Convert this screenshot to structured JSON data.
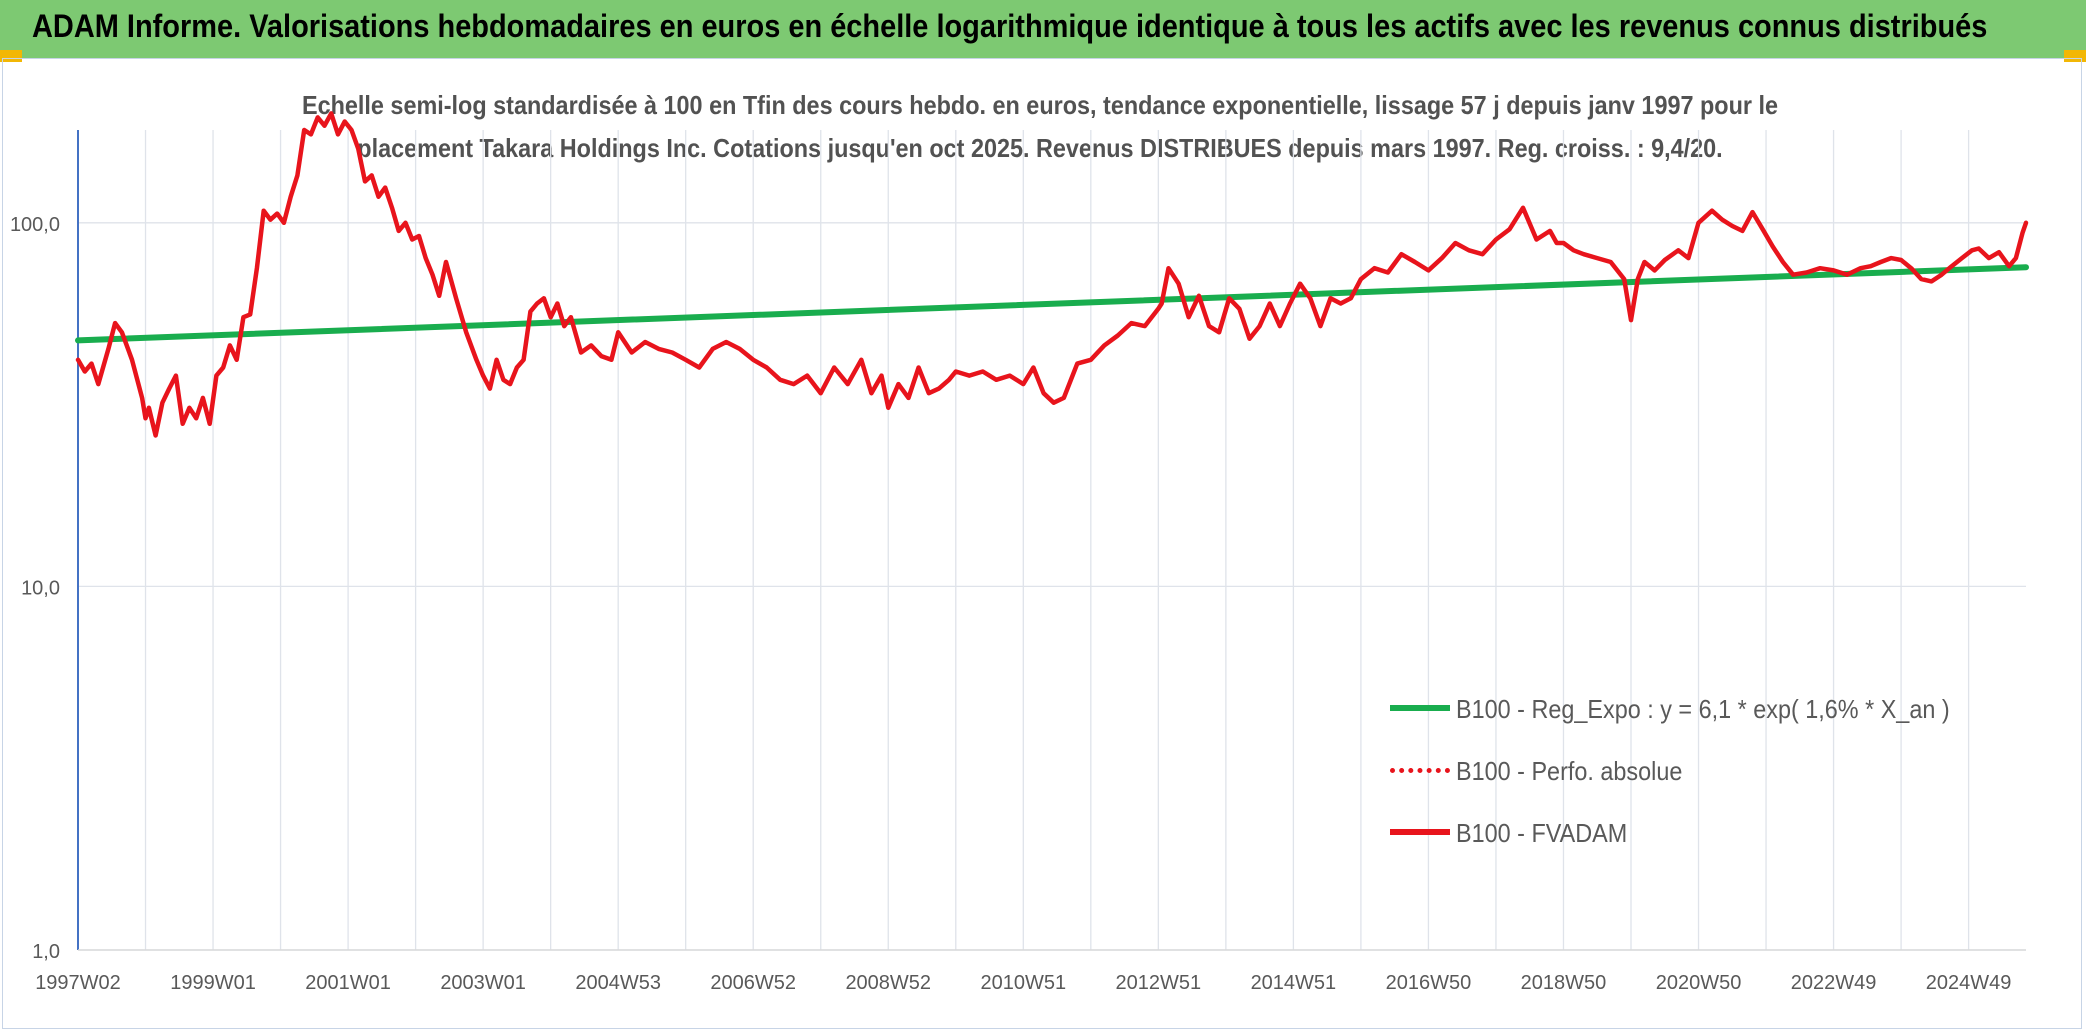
{
  "header": {
    "title": "ADAM Informe. Valorisations hebdomadaires en euros en échelle logarithmique identique à tous les actifs avec les revenus connus distribués"
  },
  "chart_data": {
    "type": "line",
    "title_line1": "Echelle semi-log standardisée à 100 en Tfin des cours hebdo. en euros, tendance exponentielle, lissage 57 j depuis janv 1997 pour le",
    "title_line2": "placement Takara Holdings Inc. Cotations jusqu'en oct 2025. Revenus DISTRIBUES depuis mars 1997. Reg. croiss. : 9,4/20.",
    "y_scale": "log",
    "ylim": [
      1,
      180
    ],
    "y_ticks": [
      {
        "value": 100,
        "label": "100,0"
      },
      {
        "value": 10,
        "label": "10,0"
      },
      {
        "value": 1,
        "label": "1,0"
      }
    ],
    "x_range": [
      1997.0,
      2025.85
    ],
    "x_ticks": [
      {
        "x": 1997.0,
        "label": "1997W02"
      },
      {
        "x": 1999.0,
        "label": "1999W01"
      },
      {
        "x": 2001.0,
        "label": "2001W01"
      },
      {
        "x": 2003.0,
        "label": "2003W01"
      },
      {
        "x": 2005.0,
        "label": "2004W53"
      },
      {
        "x": 2007.0,
        "label": "2006W52"
      },
      {
        "x": 2009.0,
        "label": "2008W52"
      },
      {
        "x": 2011.0,
        "label": "2010W51"
      },
      {
        "x": 2013.0,
        "label": "2012W51"
      },
      {
        "x": 2015.0,
        "label": "2014W51"
      },
      {
        "x": 2017.0,
        "label": "2016W50"
      },
      {
        "x": 2019.0,
        "label": "2018W50"
      },
      {
        "x": 2021.0,
        "label": "2020W50"
      },
      {
        "x": 2023.0,
        "label": "2022W49"
      },
      {
        "x": 2025.0,
        "label": "2024W49"
      }
    ],
    "minor_grid_x": [
      1998,
      2000,
      2002,
      2004,
      2006,
      2008,
      2010,
      2012,
      2014,
      2016,
      2018,
      2020,
      2022,
      2024
    ],
    "legend": [
      {
        "label": "B100 - Reg_Expo : y = 6,1 * exp( 1,6% *  X_an )",
        "color": "#19ad4e",
        "style": "solid"
      },
      {
        "label": "B100 - Perfo. absolue",
        "color": "#e8141c",
        "style": "dotted"
      },
      {
        "label": "B100 - FVADAM",
        "color": "#e8141c",
        "style": "solid"
      }
    ],
    "series": [
      {
        "name": "B100 - Reg_Expo",
        "color": "#19ad4e",
        "x": [
          1997.0,
          2025.85
        ],
        "values": [
          47.5,
          75.5
        ]
      },
      {
        "name": "B100 - FVADAM",
        "color": "#e8141c",
        "x": [
          1997.0,
          1997.1,
          1997.2,
          1997.3,
          1997.45,
          1997.55,
          1997.65,
          1997.8,
          1997.95,
          1998.0,
          1998.05,
          1998.15,
          1998.25,
          1998.35,
          1998.45,
          1998.55,
          1998.65,
          1998.75,
          1998.85,
          1998.95,
          1999.05,
          1999.15,
          1999.25,
          1999.35,
          1999.45,
          1999.55,
          1999.65,
          1999.75,
          1999.85,
          1999.95,
          2000.05,
          2000.15,
          2000.25,
          2000.35,
          2000.45,
          2000.55,
          2000.65,
          2000.75,
          2000.85,
          2000.95,
          2001.05,
          2001.15,
          2001.25,
          2001.35,
          2001.45,
          2001.55,
          2001.65,
          2001.75,
          2001.85,
          2001.95,
          2002.05,
          2002.15,
          2002.25,
          2002.35,
          2002.45,
          2002.6,
          2002.75,
          2002.9,
          2003.0,
          2003.1,
          2003.2,
          2003.3,
          2003.4,
          2003.5,
          2003.6,
          2003.7,
          2003.8,
          2003.9,
          2004.0,
          2004.1,
          2004.2,
          2004.3,
          2004.45,
          2004.6,
          2004.75,
          2004.9,
          2005.0,
          2005.2,
          2005.4,
          2005.6,
          2005.8,
          2006.0,
          2006.2,
          2006.4,
          2006.6,
          2006.8,
          2007.0,
          2007.2,
          2007.4,
          2007.6,
          2007.8,
          2008.0,
          2008.2,
          2008.4,
          2008.6,
          2008.75,
          2008.9,
          2009.0,
          2009.15,
          2009.3,
          2009.45,
          2009.6,
          2009.75,
          2009.9,
          2010.0,
          2010.2,
          2010.4,
          2010.6,
          2010.8,
          2011.0,
          2011.15,
          2011.3,
          2011.45,
          2011.6,
          2011.8,
          2012.0,
          2012.2,
          2012.4,
          2012.6,
          2012.8,
          2013.0,
          2013.05,
          2013.15,
          2013.3,
          2013.45,
          2013.6,
          2013.75,
          2013.9,
          2014.05,
          2014.2,
          2014.35,
          2014.5,
          2014.65,
          2014.8,
          2014.95,
          2015.1,
          2015.25,
          2015.4,
          2015.55,
          2015.7,
          2015.85,
          2016.0,
          2016.2,
          2016.4,
          2016.6,
          2016.8,
          2017.0,
          2017.2,
          2017.4,
          2017.6,
          2017.8,
          2018.0,
          2018.2,
          2018.4,
          2018.6,
          2018.8,
          2018.9,
          2019.0,
          2019.15,
          2019.3,
          2019.5,
          2019.7,
          2019.9,
          2020.0,
          2020.1,
          2020.2,
          2020.35,
          2020.5,
          2020.7,
          2020.85,
          2021.0,
          2021.2,
          2021.35,
          2021.5,
          2021.65,
          2021.8,
          2021.95,
          2022.1,
          2022.25,
          2022.4,
          2022.6,
          2022.8,
          2023.0,
          2023.2,
          2023.4,
          2023.55,
          2023.7,
          2023.85,
          2024.0,
          2024.15,
          2024.3,
          2024.45,
          2024.6,
          2024.75,
          2024.9,
          2025.05,
          2025.15,
          2025.3,
          2025.45,
          2025.6,
          2025.7,
          2025.8,
          2025.85
        ],
        "values": [
          42,
          39,
          41,
          36,
          45,
          53,
          50,
          42,
          33,
          29,
          31,
          26,
          32,
          35,
          38,
          28,
          31,
          29,
          33,
          28,
          38,
          40,
          46,
          42,
          55,
          56,
          75,
          108,
          102,
          106,
          100,
          118,
          135,
          180,
          175,
          195,
          185,
          200,
          175,
          190,
          180,
          160,
          130,
          135,
          118,
          125,
          110,
          95,
          100,
          90,
          92,
          80,
          72,
          63,
          78,
          62,
          50,
          42,
          38,
          35,
          42,
          37,
          36,
          40,
          42,
          57,
          60,
          62,
          55,
          60,
          52,
          55,
          44,
          46,
          43,
          42,
          50,
          44,
          47,
          45,
          44,
          42,
          40,
          45,
          47,
          45,
          42,
          40,
          37,
          36,
          38,
          34,
          40,
          36,
          42,
          34,
          38,
          31,
          36,
          33,
          40,
          34,
          35,
          37,
          39,
          38,
          39,
          37,
          38,
          36,
          40,
          34,
          32,
          33,
          41,
          42,
          46,
          49,
          53,
          52,
          58,
          60,
          75,
          68,
          55,
          63,
          52,
          50,
          62,
          58,
          48,
          52,
          60,
          52,
          60,
          68,
          62,
          52,
          62,
          60,
          62,
          70,
          75,
          73,
          82,
          78,
          74,
          80,
          88,
          84,
          82,
          90,
          96,
          110,
          90,
          95,
          88,
          88,
          84,
          82,
          80,
          78,
          70,
          54,
          70,
          78,
          74,
          79,
          84,
          80,
          100,
          108,
          102,
          98,
          95,
          107,
          96,
          86,
          78,
          72,
          73,
          75,
          74,
          72,
          75,
          76,
          78,
          80,
          79,
          75,
          70,
          69,
          72,
          76,
          80,
          84,
          85,
          80,
          83,
          76,
          80,
          94,
          100
        ]
      }
    ]
  }
}
